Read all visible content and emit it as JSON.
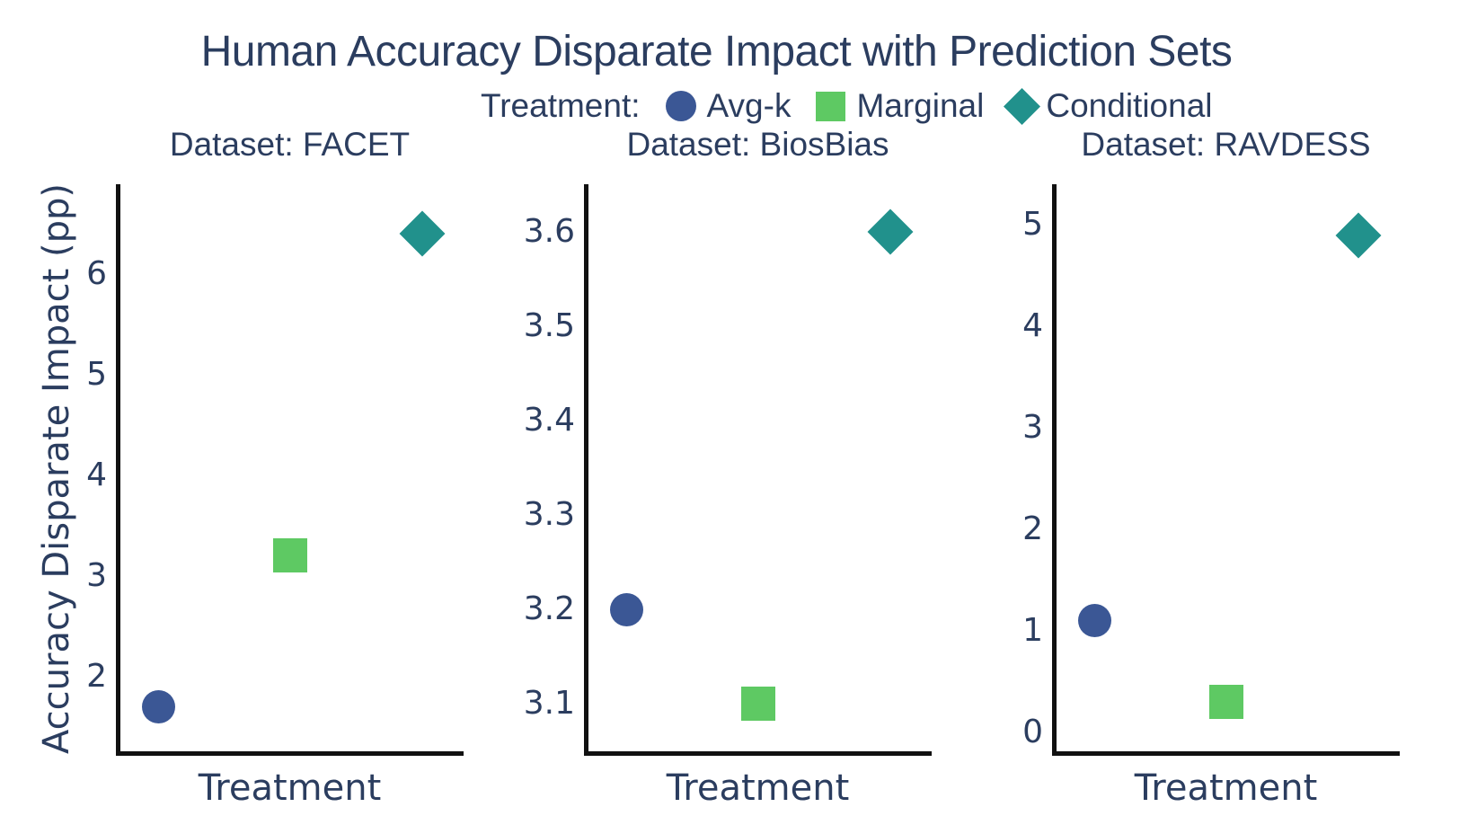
{
  "title": "Human Accuracy Disparate Impact with Prediction Sets",
  "ylabel": "Accuracy Disparate Impact (pp)",
  "legend": {
    "label": "Treatment:",
    "items": [
      {
        "name": "Avg-k",
        "marker": "circle",
        "color": "#3b5795"
      },
      {
        "name": "Marginal",
        "marker": "square",
        "color": "#5ec963"
      },
      {
        "name": "Conditional",
        "marker": "diamond",
        "color": "#21918c"
      }
    ]
  },
  "colors": {
    "text": "#2b3d5f",
    "spine": "#111111",
    "background": "#ffffff",
    "avg_k": "#3b5795",
    "marginal": "#5ec963",
    "conditional": "#21918c"
  },
  "chart_data": [
    {
      "type": "scatter",
      "title": "Dataset: FACET",
      "xlabel": "Treatment",
      "ylabel": "Accuracy Disparate Impact (pp)",
      "categories": [
        "Avg-k",
        "Marginal",
        "Conditional"
      ],
      "series": [
        {
          "name": "Avg-k",
          "marker": "circle",
          "color": "#3b5795",
          "value": 1.7
        },
        {
          "name": "Marginal",
          "marker": "square",
          "color": "#5ec963",
          "value": 3.2
        },
        {
          "name": "Conditional",
          "marker": "diamond",
          "color": "#21918c",
          "value": 6.4
        }
      ],
      "ytick_values": [
        2,
        3,
        4,
        5,
        6
      ],
      "ytick_labels": [
        "2",
        "3",
        "4",
        "5",
        "6"
      ],
      "ylim": [
        1.23,
        6.89
      ],
      "grid": false,
      "legend_position": "top"
    },
    {
      "type": "scatter",
      "title": "Dataset: BiosBias",
      "xlabel": "Treatment",
      "ylabel": "Accuracy Disparate Impact (pp)",
      "categories": [
        "Avg-k",
        "Marginal",
        "Conditional"
      ],
      "series": [
        {
          "name": "Avg-k",
          "marker": "circle",
          "color": "#3b5795",
          "value": 3.2
        },
        {
          "name": "Marginal",
          "marker": "square",
          "color": "#5ec963",
          "value": 3.1
        },
        {
          "name": "Conditional",
          "marker": "diamond",
          "color": "#21918c",
          "value": 3.6
        }
      ],
      "ytick_values": [
        3.1,
        3.2,
        3.3,
        3.4,
        3.5,
        3.6
      ],
      "ytick_labels": [
        "3.1",
        "3.2",
        "3.3",
        "3.4",
        "3.5",
        "3.6"
      ],
      "ylim": [
        3.047,
        3.65
      ],
      "grid": false,
      "legend_position": "top"
    },
    {
      "type": "scatter",
      "title": "Dataset: RAVDESS",
      "xlabel": "Treatment",
      "ylabel": "Accuracy Disparate Impact (pp)",
      "categories": [
        "Avg-k",
        "Marginal",
        "Conditional"
      ],
      "series": [
        {
          "name": "Avg-k",
          "marker": "circle",
          "color": "#3b5795",
          "value": 1.1
        },
        {
          "name": "Marginal",
          "marker": "square",
          "color": "#5ec963",
          "value": 0.3
        },
        {
          "name": "Conditional",
          "marker": "diamond",
          "color": "#21918c",
          "value": 4.9
        }
      ],
      "ytick_values": [
        0,
        1,
        2,
        3,
        4,
        5
      ],
      "ytick_labels": [
        "0",
        "1",
        "2",
        "3",
        "4",
        "5"
      ],
      "ylim": [
        -0.21,
        5.4
      ],
      "grid": false,
      "legend_position": "top"
    }
  ]
}
